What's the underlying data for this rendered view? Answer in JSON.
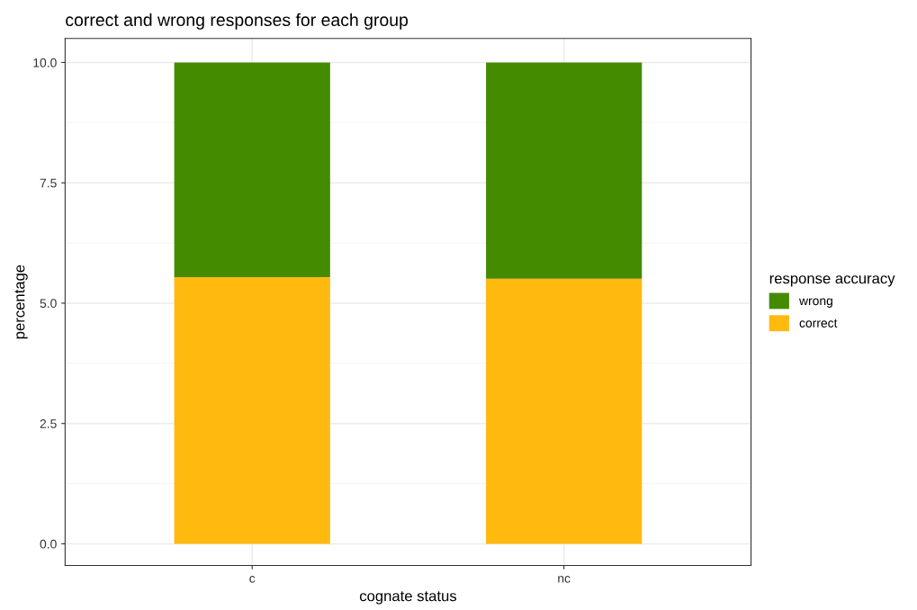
{
  "chart_data": {
    "type": "bar",
    "title": "correct and wrong responses for each group",
    "xlabel": "cognate status",
    "ylabel": "percentage",
    "legend_title": "response accuracy",
    "categories": [
      "c",
      "nc"
    ],
    "stacked": true,
    "series": [
      {
        "name": "correct",
        "color": "#ffb90f",
        "values": [
          5.54,
          5.51
        ]
      },
      {
        "name": "wrong",
        "color": "#458b00",
        "values": [
          4.46,
          4.49
        ]
      }
    ],
    "ylim": [
      -0.45,
      10.5
    ],
    "yticks": [
      {
        "value": 0,
        "label": "0.0"
      },
      {
        "value": 2.5,
        "label": "2.5"
      },
      {
        "value": 5,
        "label": "5.0"
      },
      {
        "value": 7.5,
        "label": "7.5"
      },
      {
        "value": 10,
        "label": "10.0"
      }
    ],
    "grid": true,
    "legend": "right"
  }
}
